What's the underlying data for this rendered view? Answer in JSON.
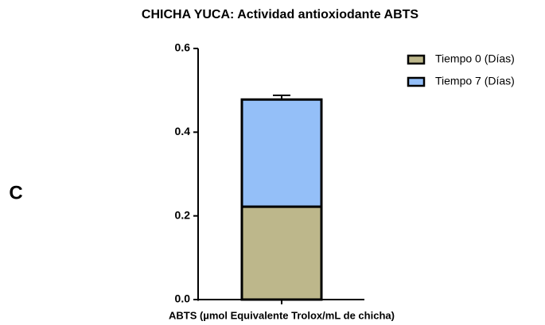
{
  "panel_label": "C",
  "chart_data": {
    "type": "bar",
    "stacked": true,
    "title": "CHICHA YUCA: Actividad antioxiodante ABTS",
    "categories": [
      "ABTS (µmol Equivalente Trolox/mL de chicha)"
    ],
    "series": [
      {
        "name": "Tiempo 0 (Días)",
        "color": "#bdb78b",
        "values": [
          0.222
        ],
        "errors": [
          0.01
        ]
      },
      {
        "name": "Tiempo 7 (Días)",
        "color": "#94bff8",
        "values": [
          0.256
        ],
        "errors": [
          0.01
        ]
      }
    ],
    "ylim": [
      0,
      0.6
    ],
    "yticks": [
      {
        "value": 0,
        "label": "0.0"
      },
      0.2,
      0.4,
      0.6
    ],
    "legend": "upper right"
  }
}
